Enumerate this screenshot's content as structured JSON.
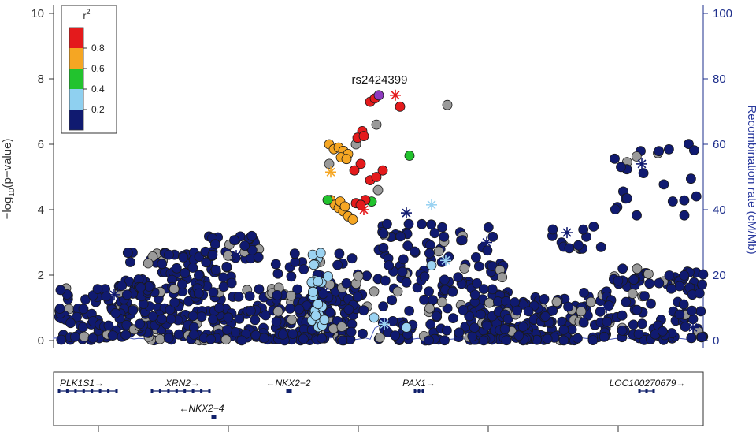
{
  "chart_data": {
    "type": "scatter",
    "title": "",
    "ylabel_parts": [
      "−log",
      "10",
      "(p−value)"
    ],
    "y2label": "Recombination rate (cM/Mb)",
    "ylim": [
      0,
      10
    ],
    "y_ticks": [
      0,
      2,
      4,
      6,
      8,
      10
    ],
    "y2lim": [
      0,
      100
    ],
    "y2_ticks": [
      0,
      20,
      40,
      60,
      80,
      100
    ],
    "legend": {
      "title": "r",
      "title_sup": "2",
      "position": "top-left",
      "bins": [
        {
          "label": "0.8",
          "color": "#e41a1c"
        },
        {
          "label": "0.6",
          "color": "#f5a623"
        },
        {
          "label": "0.4",
          "color": "#22c32e"
        },
        {
          "label": "0.2",
          "color": "#8fd0f0"
        },
        {
          "label": "",
          "color": "#101a70"
        }
      ]
    },
    "colors": {
      "navy": "#101a70",
      "gray": "#9a9a9a",
      "lightblue": "#9bd3f2",
      "green": "#22c32e",
      "orange": "#f5a623",
      "red": "#e41a1c",
      "purple": "#8e3bbf",
      "recomb_line": "#4050b8"
    },
    "lead_snp": {
      "label": "rs2424399",
      "y": 7.5
    },
    "genes": [
      {
        "name": "PLK1S1",
        "arrow": "→"
      },
      {
        "name": "XRN2",
        "arrow": "→"
      },
      {
        "name": "NKX2−2",
        "arrow": "←"
      },
      {
        "name": "NKX2−4",
        "arrow": "←"
      },
      {
        "name": "PAX1",
        "arrow": "→"
      },
      {
        "name": "LOC100270679",
        "arrow": "→"
      }
    ]
  }
}
